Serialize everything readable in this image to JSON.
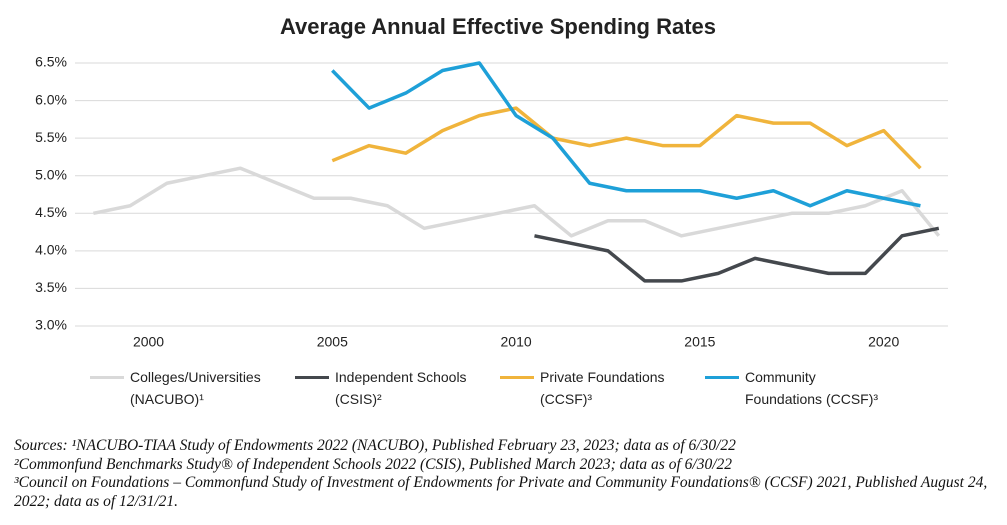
{
  "chart_data": {
    "type": "line",
    "title": "Average Annual Effective Spending Rates",
    "xlim": [
      1998,
      2021.75
    ],
    "xticks": [
      2000,
      2005,
      2010,
      2015,
      2020
    ],
    "ylim": [
      3,
      6.5
    ],
    "yticks": [
      {
        "value": 3,
        "label": "3.0%"
      },
      {
        "value": 3.5,
        "label": "3.5%"
      },
      {
        "value": 4,
        "label": "4.0%"
      },
      {
        "value": 4.5,
        "label": "4.5%"
      },
      {
        "value": 5,
        "label": "5.0%"
      },
      {
        "value": 5.5,
        "label": "5.5%"
      },
      {
        "value": 6,
        "label": "6.0%"
      },
      {
        "value": 6.5,
        "label": "6.5%"
      }
    ],
    "grid": true,
    "series": [
      {
        "name": "Colleges/Universities (NACUBO)¹",
        "color": "#d9d9d9",
        "x": [
          1998.5,
          1999.5,
          2000.5,
          2001.5,
          2002.5,
          2003.5,
          2004.5,
          2005.5,
          2006.5,
          2007.5,
          2008.5,
          2009.5,
          2010.5,
          2011.5,
          2012.5,
          2013.5,
          2014.5,
          2015.5,
          2016.5,
          2017.5,
          2018.5,
          2019.5,
          2020.5,
          2021.5
        ],
        "values": [
          4.5,
          4.6,
          4.9,
          5.0,
          5.1,
          4.9,
          4.7,
          4.7,
          4.6,
          4.3,
          4.4,
          4.5,
          4.6,
          4.2,
          4.4,
          4.4,
          4.2,
          4.3,
          4.4,
          4.5,
          4.5,
          4.6,
          4.8,
          4.2
        ]
      },
      {
        "name": "Independent Schools (CSIS)²",
        "color": "#44484d",
        "x": [
          2010.5,
          2011.5,
          2012.5,
          2013.5,
          2014.5,
          2015.5,
          2016.5,
          2017.5,
          2018.5,
          2019.5,
          2020.5,
          2021.5
        ],
        "values": [
          4.2,
          4.1,
          4.0,
          3.6,
          3.6,
          3.7,
          3.9,
          3.8,
          3.7,
          3.7,
          4.2,
          4.3
        ]
      },
      {
        "name": "Private Foundations (CCSF)³",
        "color": "#f0b43c",
        "x": [
          2005,
          2006,
          2007,
          2008,
          2009,
          2010,
          2011,
          2012,
          2013,
          2014,
          2015,
          2016,
          2017,
          2018,
          2019,
          2020,
          2021
        ],
        "values": [
          5.2,
          5.4,
          5.3,
          5.6,
          5.8,
          5.9,
          5.5,
          5.4,
          5.5,
          5.4,
          5.4,
          5.8,
          5.7,
          5.7,
          5.4,
          5.6,
          5.1
        ]
      },
      {
        "name": "Community Foundations (CCSF)³",
        "color": "#1ea0d8",
        "x": [
          2005,
          2006,
          2007,
          2008,
          2009,
          2010,
          2011,
          2012,
          2013,
          2014,
          2015,
          2016,
          2017,
          2018,
          2019,
          2020,
          2021
        ],
        "values": [
          6.4,
          5.9,
          6.1,
          6.4,
          6.5,
          5.8,
          5.5,
          4.9,
          4.8,
          4.8,
          4.8,
          4.7,
          4.8,
          4.6,
          4.8,
          4.7,
          4.6
        ]
      }
    ],
    "notes": [
      "Sources: ¹NACUBO-TIAA Study of Endowments 2022 (NACUBO), Published February 23, 2023; data as of 6/30/22",
      "²Commonfund Benchmarks Study® of Independent Schools 2022 (CSIS), Published March 2023; data as of 6/30/22",
      "³Council on Foundations – Commonfund Study of Investment of Endowments for Private and Community Foundations® (CCSF) 2021, Published August 24, 2022; data as of 12/31/21."
    ]
  }
}
